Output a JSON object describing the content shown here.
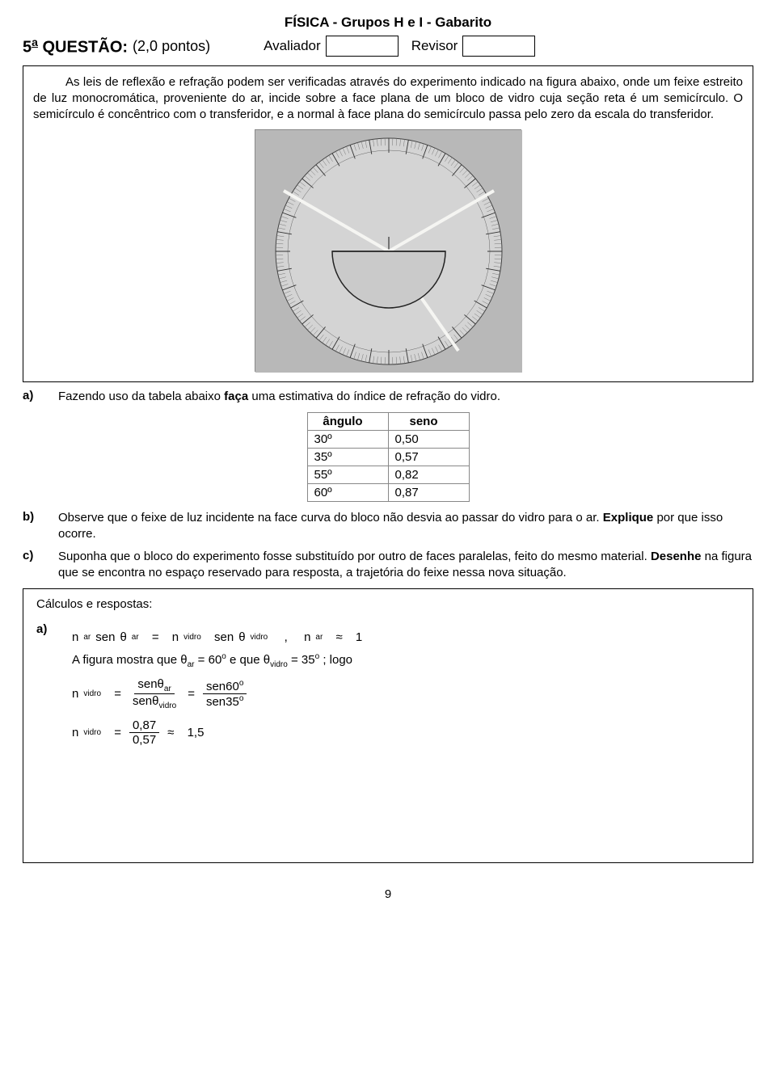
{
  "header": "FÍSICA - Grupos H e I - Gabarito",
  "question": {
    "number_prefix": "5",
    "number_suffix": "a",
    "label": "QUESTÃO:",
    "points": "(2,0 pontos)",
    "avaliador": "Avaliador",
    "revisor": "Revisor"
  },
  "problem_paragraph": "As leis de reflexão e refração podem ser verificadas através do experimento indicado na figura abaixo, onde um feixe estreito de luz monocromática, proveniente do ar, incide sobre a face plana de um bloco de vidro cuja seção reta é um semicírculo. O semicírculo é concêntrico com o transferidor, e a normal à face plana do semicírculo passa pelo zero da escala do transferidor.",
  "figure": {
    "bg_rect": "#b8b8b8",
    "circle_stroke": "#444444",
    "inner_fill": "#d4d4d4",
    "ray_color": "#f5f5f2",
    "semicircle_stroke": "#222222",
    "semicircle_fill": "#cacaca",
    "rays": [
      {
        "angle_from_normal_deg": -60,
        "len": 150
      },
      {
        "angle_from_normal_deg": 60,
        "len": 150
      },
      {
        "angle_from_normal_deg": 35,
        "len": 150,
        "below": true
      }
    ],
    "normal_tick_len": 18
  },
  "items": {
    "a": {
      "label": "a)",
      "text_before": "Fazendo uso da tabela abaixo ",
      "bold": "faça",
      "text_after": " uma estimativa do índice de refração do vidro."
    },
    "b": {
      "label": "b)",
      "text_before": "Observe que o feixe de luz  incidente na face curva do bloco não desvia ao passar do vidro para o ar. ",
      "bold": "Explique",
      "text_after": " por que isso ocorre."
    },
    "c": {
      "label": "c)",
      "text_before": "Suponha que o bloco  do experimento fosse substituído por outro de faces paralelas, feito do mesmo material. ",
      "bold": "Desenhe",
      "text_after": " na figura que se encontra no espaço reservado para resposta, a trajetória do feixe nessa nova situação."
    }
  },
  "table": {
    "col_angle": "ângulo",
    "col_sine": "seno",
    "rows": [
      {
        "angle": "30º",
        "sine": "0,50"
      },
      {
        "angle": "35º",
        "sine": "0,57"
      },
      {
        "angle": "55º",
        "sine": "0,82"
      },
      {
        "angle": "60º",
        "sine": "0,87"
      }
    ]
  },
  "answers": {
    "title": "Cálculos e respostas:",
    "a_label": "a)",
    "line1": {
      "n": "n",
      "ar": "ar",
      "sen": "sen",
      "theta": "θ",
      "vidro": "vidro",
      "eq": "=",
      "comma": ",",
      "approx": "≈",
      "one": "1"
    },
    "line2": {
      "prefix": "A figura mostra que ",
      "theta": "θ",
      "ar": "ar",
      "eq": "= 60",
      "deg": "o",
      "mid": " e que ",
      "vidro": "vidro",
      "eq2": "= 35",
      "suffix": "; logo"
    },
    "line3": {
      "n": "n",
      "vidro": "vidro",
      "eq": "=",
      "num1": "senθ",
      "num1_sub": "ar",
      "den1": "senθ",
      "den1_sub": "vidro",
      "num2": "sen60",
      "num2_sup": "o",
      "den2": "sen35",
      "den2_sup": "o"
    },
    "line4": {
      "n": "n",
      "vidro": "vidro",
      "eq": "=",
      "num": "0,87",
      "den": "0,57",
      "approx": "≈",
      "val": "1,5"
    }
  },
  "page_number": "9"
}
